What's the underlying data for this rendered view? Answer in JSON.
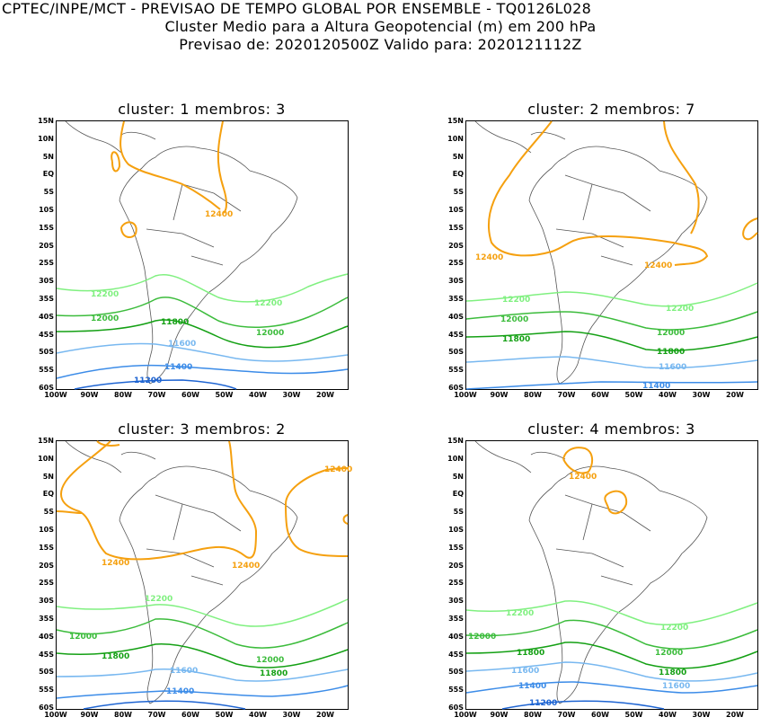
{
  "header": {
    "line1": "CPTEC/INPE/MCT - PREVISAO DE TEMPO GLOBAL POR ENSEMBLE - TQ0126L028",
    "line2": "Cluster Medio para a Altura Geopotencial (m) em 200 hPa",
    "line3": "Previsao de: 2020120500Z   Valido para: 2020121112Z"
  },
  "axes": {
    "lat_labels": [
      "15N",
      "10N",
      "5N",
      "EQ",
      "5S",
      "10S",
      "15S",
      "20S",
      "25S",
      "30S",
      "35S",
      "40S",
      "45S",
      "50S",
      "55S",
      "60S"
    ],
    "lon_labels": [
      "100W",
      "90W",
      "80W",
      "70W",
      "60W",
      "50W",
      "40W",
      "30W",
      "20W"
    ]
  },
  "colors": {
    "c12400": "#f5a00f",
    "c12200": "#80f080",
    "c12000": "#3cbc3c",
    "c11800": "#14a014",
    "c11600": "#78b8f0",
    "c11400": "#3c8ce8",
    "c11200": "#1e64d2"
  },
  "panels": [
    {
      "title": "cluster: 1   membros: 3",
      "labels": {
        "a": "12400",
        "b": "12200",
        "c": "12200",
        "d": "12000",
        "e": "11800",
        "f": "12000",
        "g": "11600",
        "h": "11400",
        "i": "11200"
      }
    },
    {
      "title": "cluster: 2   membros: 7",
      "labels": {
        "a": "12400",
        "b": "12400",
        "c": "12200",
        "d": "12200",
        "e": "12000",
        "f": "12000",
        "g": "11800",
        "h": "11800",
        "i": "11600",
        "j": "11400"
      }
    },
    {
      "title": "cluster: 3   membros: 2",
      "labels": {
        "a": "12400",
        "b": "12400",
        "c": "12400",
        "d": "12200",
        "e": "12000",
        "f": "11800",
        "g": "12000",
        "h": "11800",
        "i": "11600",
        "j": "11400"
      }
    },
    {
      "title": "cluster: 4   membros: 3",
      "labels": {
        "a": "12400",
        "b": "12200",
        "c": "12200",
        "d": "12000",
        "e": "11800",
        "f": "12000",
        "g": "11800",
        "h": "11600",
        "i": "11600",
        "j": "11400",
        "k": "11200"
      }
    }
  ]
}
